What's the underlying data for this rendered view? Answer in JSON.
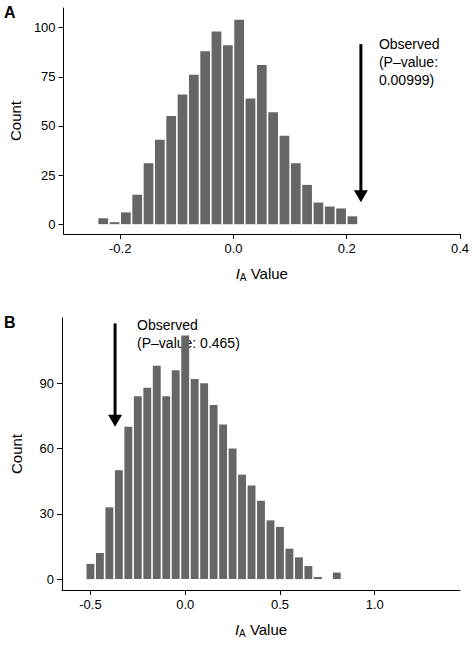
{
  "chart_data": [
    {
      "type": "histogram",
      "panel": "A",
      "x_label": "IA Value",
      "y_label": "Count",
      "color": "#666666",
      "bins": [
        -0.24,
        -0.22,
        -0.2,
        -0.18,
        -0.16,
        -0.14,
        -0.12,
        -0.1,
        -0.08,
        -0.06,
        -0.04,
        -0.02,
        0,
        0.02,
        0.04,
        0.06,
        0.08,
        0.1,
        0.12,
        0.14,
        0.16,
        0.18,
        0.2,
        0.22
      ],
      "counts": [
        3,
        1,
        6,
        15,
        31,
        43,
        55,
        66,
        76,
        88,
        98,
        91,
        104,
        64,
        81,
        57,
        45,
        31,
        20,
        11,
        9,
        8,
        4
      ],
      "xlim": [
        -0.3,
        0.4
      ],
      "xticks": [
        -0.2,
        {
          "value": 0,
          "label": "0.0"
        },
        0.2,
        0.4
      ],
      "ylim": [
        -5,
        110
      ],
      "yticks": [
        0,
        25,
        50,
        75,
        100
      ],
      "annotation": {
        "text": "Observed\n(P–value:\n0.00999)",
        "x": 0.225
      }
    },
    {
      "type": "histogram",
      "panel": "B",
      "x_label": "IA Value",
      "y_label": "Count",
      "color": "#666666",
      "bins": [
        -0.525,
        -0.475,
        -0.425,
        -0.375,
        -0.325,
        -0.275,
        -0.225,
        -0.175,
        -0.125,
        -0.075,
        -0.025,
        0.025,
        0.075,
        0.125,
        0.175,
        0.225,
        0.275,
        0.325,
        0.375,
        0.425,
        0.475,
        0.525,
        0.575,
        0.625,
        0.675,
        0.725,
        0.775,
        0.825
      ],
      "counts": [
        7,
        12,
        33,
        50,
        70,
        84,
        88,
        98,
        84,
        96,
        112,
        92,
        90,
        80,
        71,
        60,
        48,
        43,
        36,
        27,
        24,
        14,
        10,
        6,
        1,
        0,
        3
      ],
      "xlim": [
        -0.65,
        1.45
      ],
      "xticks": [
        -0.5,
        {
          "value": 0,
          "label": "0.0"
        },
        0.5,
        {
          "value": 1,
          "label": "1.0"
        }
      ],
      "ylim": [
        -5,
        120
      ],
      "yticks": [
        0,
        30,
        60,
        90
      ],
      "annotation": {
        "text": "Observed\n(P–value: 0.465)",
        "x": -0.37
      }
    }
  ]
}
